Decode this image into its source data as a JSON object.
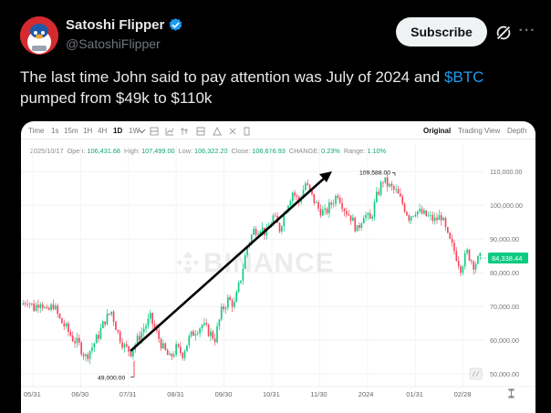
{
  "author": {
    "name": "Satoshi Flipper",
    "handle": "@SatoshiFlipper",
    "verified": true
  },
  "actions": {
    "subscribe_label": "Subscribe",
    "grok_icon": "grok-icon",
    "more_icon": "more-icon"
  },
  "tweet": {
    "text_before": "The last time John said to pay attention was July of 2024 and ",
    "cashtag": "$BTC",
    "text_after": " pumped from $49k to $110k"
  },
  "chart_toolbar": {
    "timeframes": [
      "Time",
      "1s",
      "15m",
      "1H",
      "4H",
      "1D",
      "1W"
    ],
    "selected_timeframe": "1D",
    "views": [
      "Original",
      "Trading View",
      "Depth"
    ],
    "selected_view": "Original"
  },
  "ohlc": {
    "date": "2025/10/17",
    "open_label": "Open:",
    "open": "106,431.68",
    "high_label": "High:",
    "high": "107,499.00",
    "low_label": "Low:",
    "low": "106,322.20",
    "close_label": "Close:",
    "close": "106,676.93",
    "change_label": "CHANGE:",
    "change": "0.23%",
    "range_label": "Range:",
    "range": "1.10%"
  },
  "chart_data": {
    "type": "candlestick",
    "watermark": "BINANCE",
    "x_tick_labels": [
      "05/31",
      "06/30",
      "07/31",
      "08/31",
      "09/30",
      "10/31",
      "11/30",
      "2024",
      "01/31",
      "02/28"
    ],
    "y_tick_labels": [
      "110,000.00",
      "100,000.00",
      "90,000.00",
      "80,000.00",
      "70,000.00",
      "60,000.00",
      "50,000.00"
    ],
    "y_ticks": [
      110000,
      100000,
      90000,
      80000,
      70000,
      60000,
      50000
    ],
    "ylim": [
      46500,
      113000
    ],
    "high_marker": {
      "label": "109,588.00",
      "value": 109588
    },
    "low_marker": {
      "label": "49,000.00",
      "value": 49000
    },
    "current_price": {
      "label": "84,338.44",
      "value": 84338.44
    },
    "close_path": [
      70500,
      72000,
      69500,
      71800,
      68000,
      70500,
      66000,
      63500,
      60500,
      58500,
      55000,
      58000,
      61500,
      66000,
      68500,
      62000,
      58000,
      56500,
      60000,
      63500,
      66500,
      62000,
      57500,
      54500,
      57500,
      56000,
      60500,
      63000,
      64500,
      62500,
      60500,
      68500,
      72000,
      70500,
      78500,
      88000,
      92500,
      93500,
      91500,
      96500,
      93000,
      99500,
      104000,
      101000,
      106500,
      102500,
      99000,
      97500,
      100500,
      103500,
      99000,
      96500,
      92500,
      97500,
      95500,
      102500,
      107500,
      105500,
      104000,
      100500,
      96500,
      98500,
      97500,
      96500,
      95500,
      96800,
      90500,
      86500,
      81500,
      86000,
      82500,
      84338
    ],
    "colors": {
      "up": "#0ecb81",
      "down": "#f6465d",
      "arrow": "#000000",
      "price_tag": "#0ecb81"
    }
  }
}
